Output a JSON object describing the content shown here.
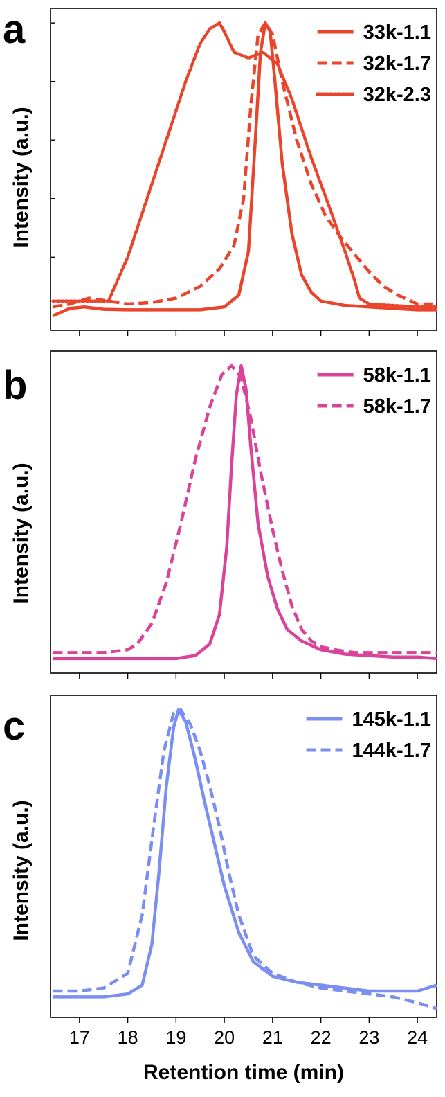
{
  "chart_data": [
    {
      "panel": "a",
      "type": "line",
      "ylabel": "Intensity (a.u.)",
      "xlabel": "",
      "xlim": [
        16.4,
        24.4
      ],
      "ylim": [
        -0.05,
        1.05
      ],
      "x_ticks": [
        17,
        18,
        19,
        20,
        21,
        22,
        23,
        24
      ],
      "show_x_tick_labels": false,
      "y_ticks_unlabeled": [
        0.2,
        0.4,
        0.6,
        0.8,
        1.0
      ],
      "legend_position": "top-right",
      "series": [
        {
          "name": "33k-1.1",
          "color": "#e8452c",
          "style": "solid",
          "x": [
            16.45,
            16.8,
            17.1,
            17.5,
            18.0,
            18.5,
            19.0,
            19.5,
            20.0,
            20.3,
            20.5,
            20.65,
            20.75,
            20.85,
            20.95,
            21.05,
            21.2,
            21.4,
            21.6,
            21.8,
            22.0,
            22.5,
            23.0,
            23.5,
            24.0,
            24.4
          ],
          "y": [
            0.0,
            0.025,
            0.03,
            0.022,
            0.02,
            0.02,
            0.02,
            0.02,
            0.03,
            0.07,
            0.22,
            0.62,
            0.9,
            1.0,
            0.97,
            0.8,
            0.52,
            0.28,
            0.14,
            0.08,
            0.05,
            0.035,
            0.03,
            0.025,
            0.02,
            0.02
          ]
        },
        {
          "name": "32k-1.7",
          "color": "#e8452c",
          "style": "dashed",
          "x": [
            16.45,
            16.8,
            17.2,
            17.6,
            18.0,
            18.5,
            19.0,
            19.5,
            19.9,
            20.2,
            20.4,
            20.55,
            20.7,
            20.85,
            21.0,
            21.2,
            21.5,
            21.8,
            22.1,
            22.4,
            22.7,
            23.0,
            23.3,
            23.6,
            24.0,
            24.4
          ],
          "y": [
            0.03,
            0.04,
            0.06,
            0.05,
            0.04,
            0.045,
            0.06,
            0.1,
            0.16,
            0.24,
            0.4,
            0.72,
            0.96,
            1.0,
            0.96,
            0.8,
            0.6,
            0.45,
            0.34,
            0.27,
            0.21,
            0.15,
            0.1,
            0.07,
            0.04,
            0.04
          ]
        },
        {
          "name": "32k-2.3",
          "color": "#e8452c",
          "style": "dotted",
          "x": [
            16.45,
            17.0,
            17.6,
            18.0,
            18.4,
            18.8,
            19.2,
            19.5,
            19.7,
            19.9,
            20.0,
            20.2,
            20.5,
            20.8,
            21.1,
            21.4,
            21.8,
            22.2,
            22.5,
            22.7,
            22.8,
            23.0,
            23.5,
            24.0,
            24.4
          ],
          "y": [
            0.05,
            0.05,
            0.05,
            0.2,
            0.4,
            0.6,
            0.8,
            0.93,
            0.98,
            1.0,
            0.97,
            0.9,
            0.88,
            0.9,
            0.86,
            0.74,
            0.54,
            0.36,
            0.22,
            0.12,
            0.06,
            0.04,
            0.035,
            0.03,
            0.03
          ]
        }
      ]
    },
    {
      "panel": "b",
      "type": "line",
      "ylabel": "Intensity (a.u.)",
      "xlabel": "",
      "xlim": [
        16.4,
        24.4
      ],
      "ylim": [
        -0.05,
        1.05
      ],
      "x_ticks": [
        17,
        18,
        19,
        20,
        21,
        22,
        23,
        24
      ],
      "show_x_tick_labels": false,
      "legend_position": "top-right",
      "series": [
        {
          "name": "58k-1.1",
          "color": "#d9449a",
          "style": "solid",
          "x": [
            16.45,
            17.0,
            17.5,
            18.0,
            18.5,
            19.0,
            19.4,
            19.7,
            19.9,
            20.05,
            20.15,
            20.25,
            20.35,
            20.45,
            20.55,
            20.7,
            20.9,
            21.1,
            21.3,
            21.6,
            22.0,
            22.5,
            23.0,
            23.5,
            24.0,
            24.4
          ],
          "y": [
            0.0,
            0.0,
            0.0,
            0.0,
            0.0,
            0.0,
            0.01,
            0.05,
            0.15,
            0.38,
            0.66,
            0.9,
            1.0,
            0.92,
            0.72,
            0.46,
            0.28,
            0.17,
            0.1,
            0.06,
            0.03,
            0.015,
            0.01,
            0.005,
            0.005,
            0.0
          ]
        },
        {
          "name": "58k-1.7",
          "color": "#d9449a",
          "style": "dashed",
          "x": [
            16.45,
            17.0,
            17.5,
            18.0,
            18.2,
            18.5,
            18.8,
            19.1,
            19.4,
            19.7,
            19.95,
            20.15,
            20.35,
            20.55,
            20.75,
            21.0,
            21.2,
            21.4,
            21.6,
            21.8,
            22.0,
            22.3,
            22.7,
            23.0,
            24.0,
            24.4
          ],
          "y": [
            0.02,
            0.02,
            0.02,
            0.03,
            0.05,
            0.12,
            0.26,
            0.46,
            0.68,
            0.86,
            0.97,
            1.0,
            0.96,
            0.82,
            0.64,
            0.44,
            0.3,
            0.18,
            0.1,
            0.06,
            0.04,
            0.03,
            0.02,
            0.02,
            0.02,
            0.02
          ]
        }
      ]
    },
    {
      "panel": "c",
      "type": "line",
      "ylabel": "Intensity (a.u.)",
      "xlabel": "Retention time (min)",
      "xlim": [
        16.4,
        24.4
      ],
      "ylim": [
        -0.05,
        1.05
      ],
      "x_ticks": [
        17,
        18,
        19,
        20,
        21,
        22,
        23,
        24
      ],
      "show_x_tick_labels": true,
      "legend_position": "top-right",
      "series": [
        {
          "name": "145k-1.1",
          "color": "#7b8ff0",
          "style": "solid",
          "x": [
            16.45,
            17.0,
            17.5,
            18.0,
            18.3,
            18.5,
            18.65,
            18.8,
            18.95,
            19.05,
            19.2,
            19.4,
            19.6,
            19.8,
            20.0,
            20.3,
            20.6,
            21.0,
            21.5,
            22.0,
            22.5,
            23.0,
            23.5,
            24.0,
            24.4
          ],
          "y": [
            0.02,
            0.02,
            0.02,
            0.03,
            0.06,
            0.2,
            0.45,
            0.74,
            0.94,
            1.0,
            0.96,
            0.83,
            0.68,
            0.54,
            0.4,
            0.24,
            0.14,
            0.09,
            0.07,
            0.06,
            0.05,
            0.04,
            0.04,
            0.04,
            0.06
          ]
        },
        {
          "name": "144k-1.7",
          "color": "#7b8ff0",
          "style": "dashed",
          "x": [
            16.45,
            17.0,
            17.5,
            18.0,
            18.3,
            18.55,
            18.75,
            18.95,
            19.1,
            19.3,
            19.5,
            19.7,
            19.9,
            20.1,
            20.3,
            20.6,
            21.0,
            21.5,
            22.0,
            22.5,
            23.0,
            23.5,
            24.0,
            24.4
          ],
          "y": [
            0.04,
            0.04,
            0.05,
            0.1,
            0.3,
            0.62,
            0.86,
            0.99,
            1.0,
            0.95,
            0.86,
            0.74,
            0.6,
            0.44,
            0.3,
            0.16,
            0.1,
            0.07,
            0.05,
            0.04,
            0.03,
            0.02,
            0.0,
            -0.02
          ]
        }
      ]
    }
  ]
}
